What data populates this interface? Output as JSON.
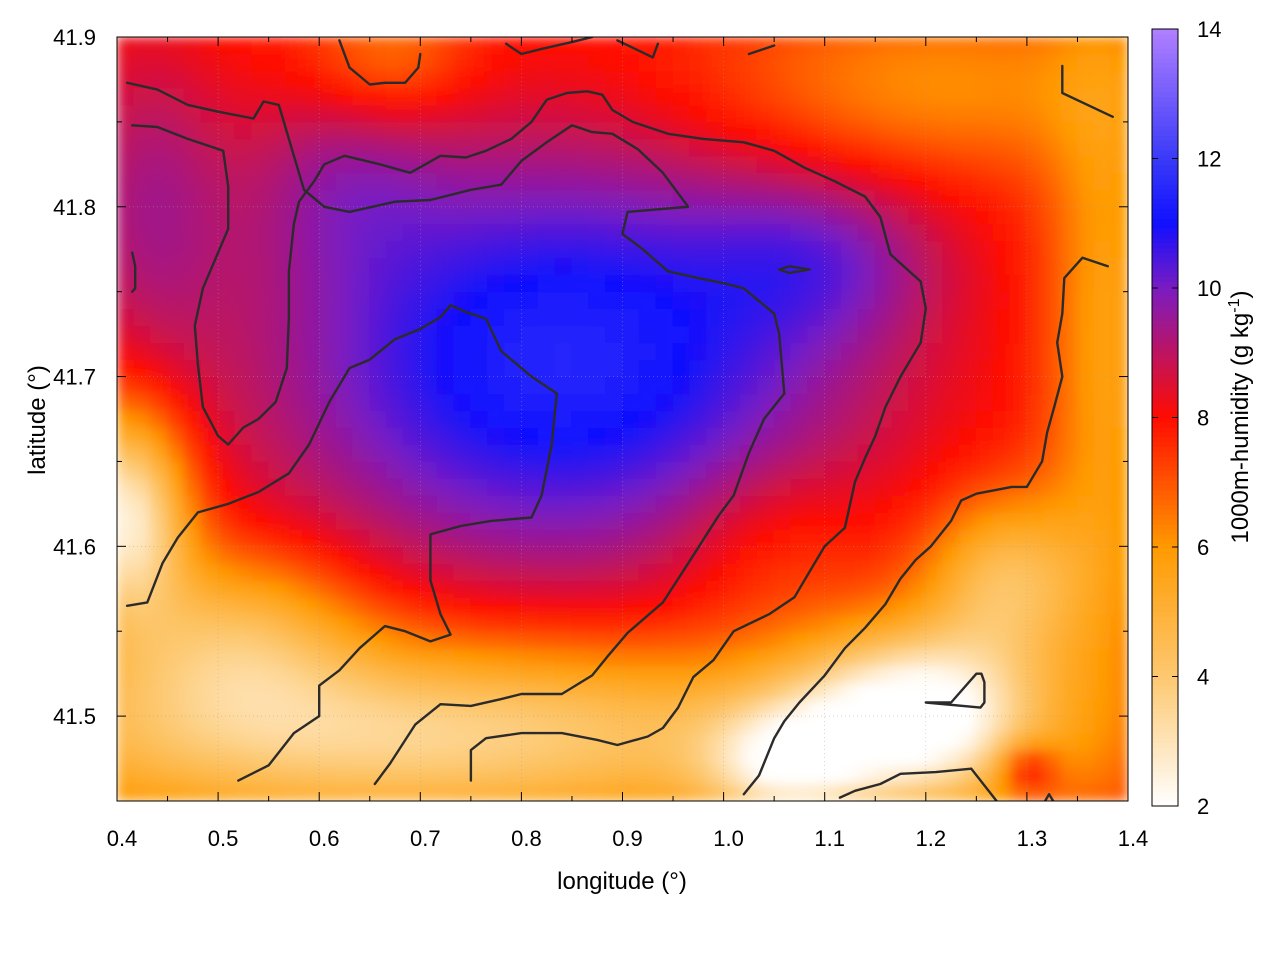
{
  "chart_data": {
    "type": "heatmap",
    "title": "",
    "xlabel": "longitude (°)",
    "ylabel": "latitude (°)",
    "colorbar_label": {
      "prefix": "1000m-humidity (g kg",
      "superscript": "-1",
      "suffix": ")"
    },
    "xlim": [
      0.4,
      1.4
    ],
    "ylim": [
      41.45,
      41.9
    ],
    "x_ticks": [
      "0.4",
      "0.5",
      "0.6",
      "0.7",
      "0.8",
      "0.9",
      "1.0",
      "1.1",
      "1.2",
      "1.3",
      "1.4"
    ],
    "y_ticks": [
      "41.5",
      "41.6",
      "41.7",
      "41.8",
      "41.9"
    ],
    "colorbar_range": [
      2,
      14
    ],
    "colorbar_ticks": [
      "2",
      "4",
      "6",
      "8",
      "10",
      "12",
      "14"
    ],
    "grid": true,
    "colormap": [
      {
        "value": 2,
        "color": "#ffffff"
      },
      {
        "value": 4,
        "color": "#fdc870"
      },
      {
        "value": 6,
        "color": "#ff9a00"
      },
      {
        "value": 8,
        "color": "#ff0c00"
      },
      {
        "value": 10,
        "color": "#7a1cc2"
      },
      {
        "value": 11,
        "color": "#1010ff"
      },
      {
        "value": 12,
        "color": "#3a3af8"
      },
      {
        "value": 14,
        "color": "#b080ff"
      }
    ],
    "field_description": {
      "humid_core": {
        "lon": 0.82,
        "lat": 41.7,
        "value": 11.4
      },
      "dry_southeast": {
        "lon": 1.18,
        "lat": 41.5,
        "value": 2.6
      },
      "dry_southwest": {
        "lon": 0.43,
        "lat": 41.6,
        "value": 3.2
      }
    },
    "contours": [
      [
        [
          0.41,
          41.565
        ],
        [
          0.43,
          41.567
        ],
        [
          0.445,
          41.59
        ],
        [
          0.46,
          41.605
        ],
        [
          0.48,
          41.62
        ],
        [
          0.51,
          41.625
        ],
        [
          0.54,
          41.632
        ],
        [
          0.57,
          41.643
        ],
        [
          0.59,
          41.66
        ],
        [
          0.61,
          41.685
        ],
        [
          0.63,
          41.705
        ],
        [
          0.65,
          41.71
        ],
        [
          0.675,
          41.722
        ],
        [
          0.7,
          41.728
        ],
        [
          0.72,
          41.735
        ],
        [
          0.73,
          41.742
        ],
        [
          0.745,
          41.738
        ],
        [
          0.765,
          41.734
        ],
        [
          0.78,
          41.715
        ],
        [
          0.81,
          41.7
        ],
        [
          0.835,
          41.69
        ],
        [
          0.83,
          41.66
        ],
        [
          0.82,
          41.63
        ],
        [
          0.81,
          41.617
        ],
        [
          0.77,
          41.615
        ],
        [
          0.74,
          41.612
        ],
        [
          0.71,
          41.607
        ],
        [
          0.71,
          41.605
        ],
        [
          0.71,
          41.58
        ],
        [
          0.72,
          41.56
        ],
        [
          0.73,
          41.548
        ],
        [
          0.71,
          41.544
        ],
        [
          0.685,
          41.55
        ],
        [
          0.665,
          41.553
        ],
        [
          0.64,
          41.54
        ],
        [
          0.62,
          41.527
        ],
        [
          0.6,
          41.518
        ],
        [
          0.6,
          41.5
        ],
        [
          0.575,
          41.49
        ],
        [
          0.55,
          41.471
        ],
        [
          0.52,
          41.462
        ]
      ],
      [
        [
          0.655,
          41.46
        ],
        [
          0.67,
          41.472
        ],
        [
          0.695,
          41.495
        ],
        [
          0.72,
          41.507
        ],
        [
          0.75,
          41.506
        ],
        [
          0.78,
          41.51
        ],
        [
          0.8,
          41.513
        ],
        [
          0.84,
          41.513
        ],
        [
          0.87,
          41.524
        ],
        [
          0.885,
          41.535
        ],
        [
          0.905,
          41.549
        ],
        [
          0.94,
          41.567
        ],
        [
          0.965,
          41.59
        ],
        [
          0.995,
          41.618
        ],
        [
          1.01,
          41.63
        ],
        [
          1.025,
          41.655
        ],
        [
          1.04,
          41.675
        ],
        [
          1.06,
          41.69
        ],
        [
          1.055,
          41.725
        ],
        [
          1.05,
          41.737
        ],
        [
          1.02,
          41.752
        ],
        [
          1.0,
          41.755
        ],
        [
          0.975,
          41.758
        ],
        [
          0.945,
          41.762
        ],
        [
          0.92,
          41.775
        ],
        [
          0.9,
          41.784
        ],
        [
          0.905,
          41.797
        ],
        [
          0.945,
          41.799
        ],
        [
          0.965,
          41.8
        ],
        [
          0.94,
          41.82
        ],
        [
          0.915,
          41.834
        ],
        [
          0.89,
          41.843
        ],
        [
          0.87,
          41.844
        ],
        [
          0.85,
          41.848
        ],
        [
          0.825,
          41.838
        ],
        [
          0.8,
          41.827
        ],
        [
          0.78,
          41.813
        ],
        [
          0.75,
          41.81
        ],
        [
          0.71,
          41.804
        ],
        [
          0.675,
          41.803
        ],
        [
          0.63,
          41.797
        ],
        [
          0.605,
          41.8
        ],
        [
          0.585,
          41.81
        ],
        [
          0.575,
          41.83
        ],
        [
          0.56,
          41.86
        ],
        [
          0.545,
          41.862
        ],
        [
          0.535,
          41.852
        ],
        [
          0.5,
          41.856
        ],
        [
          0.47,
          41.86
        ],
        [
          0.44,
          41.869
        ],
        [
          0.41,
          41.873
        ]
      ],
      [
        [
          0.415,
          41.848
        ],
        [
          0.44,
          41.847
        ],
        [
          0.47,
          41.84
        ],
        [
          0.505,
          41.833
        ],
        [
          0.51,
          41.812
        ],
        [
          0.51,
          41.787
        ],
        [
          0.485,
          41.752
        ],
        [
          0.477,
          41.73
        ],
        [
          0.48,
          41.707
        ],
        [
          0.485,
          41.682
        ],
        [
          0.5,
          41.665
        ],
        [
          0.51,
          41.66
        ],
        [
          0.525,
          41.67
        ],
        [
          0.54,
          41.675
        ],
        [
          0.557,
          41.685
        ],
        [
          0.568,
          41.705
        ],
        [
          0.57,
          41.735
        ],
        [
          0.57,
          41.762
        ],
        [
          0.575,
          41.79
        ],
        [
          0.58,
          41.803
        ],
        [
          0.595,
          41.815
        ],
        [
          0.605,
          41.825
        ],
        [
          0.625,
          41.83
        ],
        [
          0.66,
          41.825
        ],
        [
          0.69,
          41.82
        ],
        [
          0.72,
          41.83
        ],
        [
          0.745,
          41.829
        ],
        [
          0.765,
          41.833
        ],
        [
          0.79,
          41.84
        ],
        [
          0.81,
          41.85
        ],
        [
          0.825,
          41.863
        ],
        [
          0.845,
          41.867
        ],
        [
          0.865,
          41.868
        ],
        [
          0.88,
          41.866
        ],
        [
          0.89,
          41.857
        ],
        [
          0.91,
          41.85
        ],
        [
          0.945,
          41.843
        ],
        [
          0.98,
          41.84
        ],
        [
          1.02,
          41.838
        ],
        [
          1.05,
          41.833
        ],
        [
          1.08,
          41.823
        ],
        [
          1.11,
          41.815
        ],
        [
          1.14,
          41.806
        ],
        [
          1.155,
          41.794
        ],
        [
          1.165,
          41.772
        ],
        [
          1.195,
          41.756
        ],
        [
          1.2,
          41.74
        ],
        [
          1.195,
          41.72
        ],
        [
          1.175,
          41.7
        ],
        [
          1.16,
          41.682
        ],
        [
          1.15,
          41.665
        ],
        [
          1.14,
          41.652
        ],
        [
          1.13,
          41.638
        ],
        [
          1.12,
          41.611
        ],
        [
          1.1,
          41.6
        ],
        [
          1.085,
          41.585
        ],
        [
          1.07,
          41.57
        ],
        [
          1.045,
          41.56
        ],
        [
          1.01,
          41.55
        ],
        [
          0.99,
          41.533
        ],
        [
          0.97,
          41.523
        ],
        [
          0.955,
          41.505
        ],
        [
          0.94,
          41.493
        ],
        [
          0.925,
          41.488
        ],
        [
          0.895,
          41.483
        ],
        [
          0.875,
          41.486
        ],
        [
          0.84,
          41.49
        ],
        [
          0.8,
          41.49
        ],
        [
          0.765,
          41.487
        ],
        [
          0.75,
          41.48
        ],
        [
          0.75,
          41.462
        ]
      ],
      [
        [
          1.02,
          41.454
        ],
        [
          1.035,
          41.465
        ],
        [
          1.05,
          41.487
        ],
        [
          1.06,
          41.497
        ],
        [
          1.075,
          41.508
        ],
        [
          1.1,
          41.524
        ],
        [
          1.12,
          41.54
        ],
        [
          1.14,
          41.552
        ],
        [
          1.16,
          41.566
        ],
        [
          1.175,
          41.581
        ],
        [
          1.19,
          41.592
        ],
        [
          1.205,
          41.6
        ],
        [
          1.225,
          41.615
        ],
        [
          1.235,
          41.627
        ],
        [
          1.25,
          41.631
        ],
        [
          1.285,
          41.635
        ],
        [
          1.3,
          41.635
        ],
        [
          1.315,
          41.65
        ],
        [
          1.32,
          41.667
        ],
        [
          1.327,
          41.682
        ],
        [
          1.335,
          41.7
        ],
        [
          1.33,
          41.72
        ],
        [
          1.335,
          41.737
        ],
        [
          1.337,
          41.758
        ],
        [
          1.355,
          41.77
        ],
        [
          1.38,
          41.765
        ]
      ],
      [
        [
          1.115,
          41.452
        ],
        [
          1.13,
          41.456
        ],
        [
          1.155,
          41.46
        ],
        [
          1.175,
          41.466
        ],
        [
          1.21,
          41.467
        ],
        [
          1.245,
          41.469
        ],
        [
          1.27,
          41.45
        ]
      ],
      [
        [
          1.2,
          41.508
        ],
        [
          1.225,
          41.508
        ],
        [
          1.25,
          41.525
        ],
        [
          1.255,
          41.525
        ],
        [
          1.258,
          41.52
        ],
        [
          1.258,
          41.508
        ],
        [
          1.254,
          41.505
        ],
        [
          1.2,
          41.508
        ]
      ],
      [
        [
          1.335,
          41.883
        ],
        [
          1.335,
          41.867
        ],
        [
          1.36,
          41.86
        ],
        [
          1.385,
          41.853
        ]
      ],
      [
        [
          0.62,
          41.898
        ],
        [
          0.63,
          41.882
        ],
        [
          0.65,
          41.872
        ],
        [
          0.665,
          41.873
        ],
        [
          0.685,
          41.873
        ],
        [
          0.698,
          41.882
        ],
        [
          0.7,
          41.89
        ]
      ],
      [
        [
          0.785,
          41.896
        ],
        [
          0.8,
          41.89
        ],
        [
          0.82,
          41.893
        ],
        [
          0.85,
          41.897
        ],
        [
          0.87,
          41.9
        ]
      ],
      [
        [
          0.895,
          41.898
        ],
        [
          0.93,
          41.888
        ],
        [
          0.935,
          41.896
        ]
      ],
      [
        [
          1.025,
          41.89
        ],
        [
          1.05,
          41.895
        ]
      ],
      [
        [
          1.055,
          41.763
        ],
        [
          1.065,
          41.765
        ],
        [
          1.085,
          41.763
        ],
        [
          1.065,
          41.761
        ],
        [
          1.055,
          41.763
        ]
      ],
      [
        [
          0.415,
          41.773
        ],
        [
          0.418,
          41.765
        ],
        [
          0.418,
          41.752
        ],
        [
          0.415,
          41.75
        ]
      ],
      [
        [
          1.318,
          41.45
        ],
        [
          1.322,
          41.454
        ],
        [
          1.326,
          41.45
        ]
      ]
    ]
  }
}
